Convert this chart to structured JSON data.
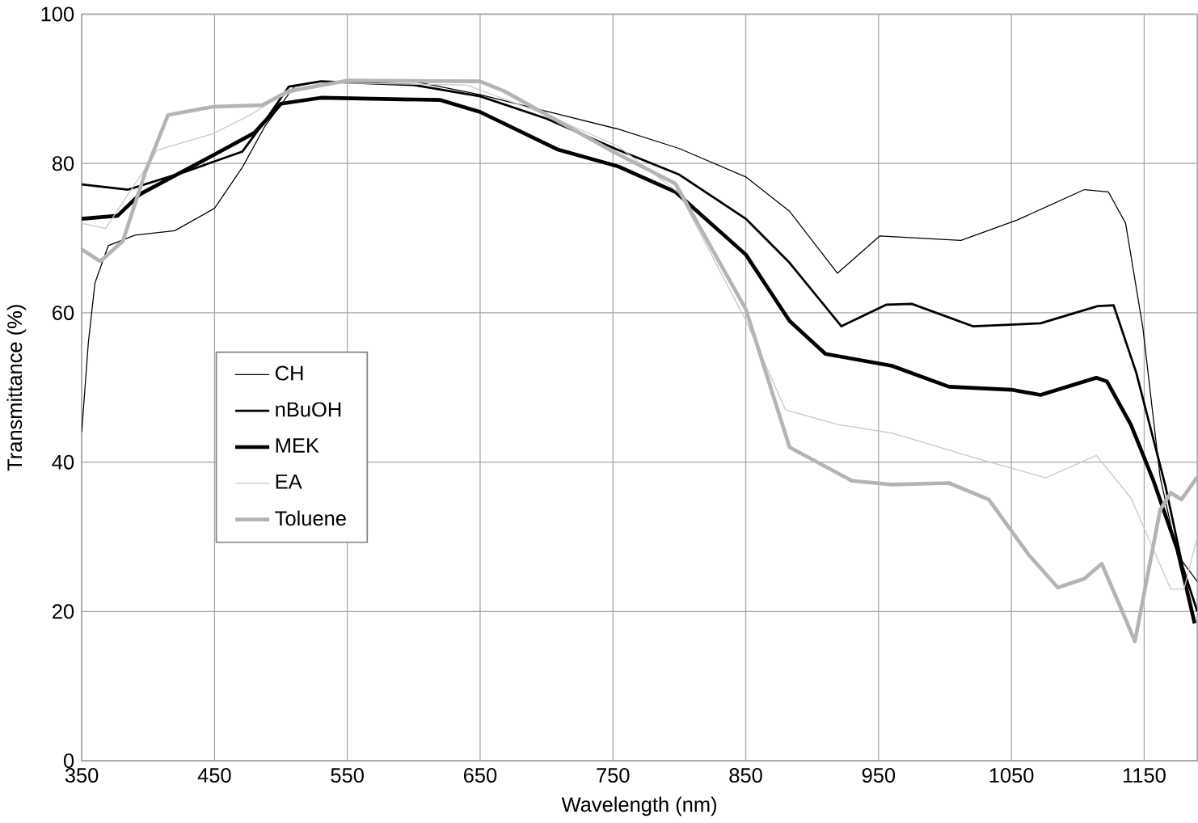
{
  "chart_data": {
    "type": "line",
    "xlabel": "Wavelength (nm)",
    "ylabel": "Transmittance (%)",
    "xlim": [
      350,
      1190
    ],
    "ylim": [
      0,
      100
    ],
    "xticks": [
      350,
      450,
      550,
      650,
      750,
      850,
      950,
      1050,
      1150
    ],
    "yticks": [
      0,
      20,
      40,
      60,
      80,
      100
    ],
    "grid": true,
    "legend": "left",
    "marker": "none",
    "line_style": "solid",
    "series": [
      {
        "name": "CH",
        "color": "#000000",
        "x": [
          350,
          355,
          360,
          370,
          390,
          420,
          450,
          471,
          488,
          510,
          530,
          600,
          650,
          700,
          754,
          800,
          850,
          883,
          919,
          951,
          1012,
          1054,
          1105,
          1123,
          1136,
          1149,
          1162,
          1175,
          1190
        ],
        "values": [
          44,
          56,
          64,
          69,
          70.4,
          71,
          74,
          79.5,
          85,
          90.3,
          91,
          91,
          89.2,
          87,
          84.6,
          82,
          78.2,
          73.6,
          65.3,
          70.3,
          69.7,
          72.4,
          76.5,
          76.2,
          72,
          58,
          38,
          27.6,
          24
        ]
      },
      {
        "name": "nBuOH",
        "color": "#000000",
        "x": [
          350,
          385,
          428,
          471,
          488,
          506,
          530,
          600,
          650,
          700,
          754,
          800,
          850,
          883,
          922,
          956,
          975,
          1021,
          1072,
          1115,
          1127,
          1144,
          1166,
          1179,
          1190
        ],
        "values": [
          77.2,
          76.5,
          78.9,
          81.6,
          85.7,
          90.3,
          91,
          90.5,
          89,
          86,
          81.8,
          78.5,
          72.6,
          66.7,
          58.2,
          61.1,
          61.2,
          58.2,
          58.6,
          60.9,
          61,
          52,
          36.8,
          26,
          20
        ]
      },
      {
        "name": "MEK",
        "color": "#000000",
        "x": [
          350,
          377,
          394,
          449,
          480,
          500,
          530,
          620,
          650,
          708,
          754,
          797,
          850,
          883,
          910,
          960,
          1003,
          1050,
          1072,
          1114,
          1122,
          1140,
          1157,
          1175,
          1188
        ],
        "values": [
          72.6,
          73,
          75.9,
          81.1,
          84.1,
          88,
          88.8,
          88.5,
          86.9,
          81.9,
          79.6,
          76.2,
          67.8,
          58.9,
          54.5,
          52.9,
          50.1,
          49.7,
          49,
          51.3,
          50.8,
          45,
          37.5,
          28.3,
          18.4
        ]
      },
      {
        "name": "EA",
        "color": "#c8c8c8",
        "x": [
          350,
          368,
          407,
          449,
          477,
          497,
          530,
          640,
          700,
          754,
          800,
          850,
          880,
          920,
          960,
          1024,
          1076,
          1114,
          1140,
          1170,
          1180,
          1190
        ],
        "values": [
          72,
          71.3,
          81.8,
          84,
          86.5,
          88.8,
          90.8,
          90.5,
          86.5,
          82.3,
          76,
          59,
          47,
          45,
          43.9,
          40.5,
          37.9,
          40.9,
          35.2,
          23,
          23,
          30
        ]
      },
      {
        "name": "Toluene",
        "color": "#b4b4b4",
        "x": [
          350,
          364,
          381,
          398,
          415,
          449,
          486,
          506,
          550,
          650,
          668,
          750,
          797,
          850,
          883,
          930,
          960,
          1003,
          1033,
          1063,
          1085,
          1105,
          1118,
          1134,
          1143,
          1162,
          1170,
          1178,
          1190
        ],
        "values": [
          68.5,
          66.9,
          69.6,
          78.9,
          86.5,
          87.6,
          87.8,
          89.7,
          91.1,
          91,
          89.7,
          81.6,
          77.3,
          60.5,
          42,
          37.5,
          37,
          37.2,
          35,
          27.6,
          23.2,
          24.4,
          26.4,
          19.8,
          16,
          33.6,
          35.9,
          35,
          38
        ]
      }
    ]
  }
}
